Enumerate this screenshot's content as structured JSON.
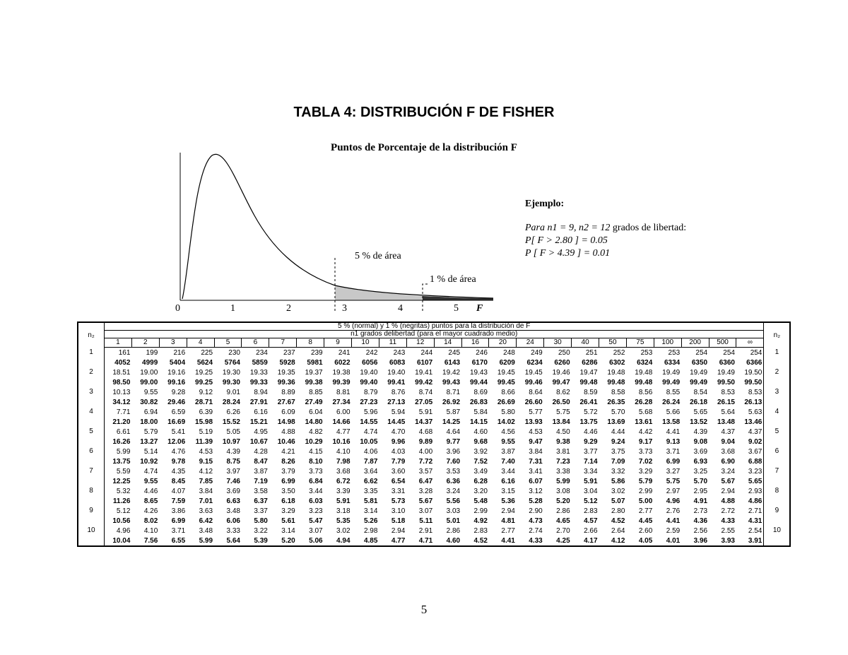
{
  "header": {
    "title": "TABLA 4: DISTRIBUCIÓN F DE FISHER",
    "subtitle": "Puntos de Porcentaje de la distribución F"
  },
  "figure": {
    "axis_labels": [
      "0",
      "1",
      "2",
      "3",
      "4",
      "5"
    ],
    "axis_name": "F",
    "area_5": "5 % de área",
    "area_1": "1 % de área"
  },
  "example": {
    "heading": "Ejemplo:",
    "intro": "Para n1 = 9, n2 = 12",
    "intro_tail": "grados de libertad:",
    "lines": [
      "P[ F > 2.80 ] = 0.05",
      "P [ F > 4.39 ] = 0.01"
    ]
  },
  "table": {
    "n2_label": "n₂",
    "caption": "5 % (normal) y 1 % (negritas) puntos para la distribución de F",
    "subcaption": "n1 grados delibertad (para el mayor cuadrado medio)",
    "columns": [
      "1",
      "2",
      "3",
      "4",
      "5",
      "6",
      "7",
      "8",
      "9",
      "10",
      "11",
      "12",
      "14",
      "16",
      "20",
      "24",
      "30",
      "40",
      "50",
      "75",
      "100",
      "200",
      "500",
      "∞"
    ],
    "rows": [
      {
        "n2": "1",
        "normal": [
          "161",
          "199",
          "216",
          "225",
          "230",
          "234",
          "237",
          "239",
          "241",
          "242",
          "243",
          "244",
          "245",
          "246",
          "248",
          "249",
          "250",
          "251",
          "252",
          "253",
          "253",
          "254",
          "254",
          "254"
        ],
        "bold": [
          "4052",
          "4999",
          "5404",
          "5624",
          "5764",
          "5859",
          "5928",
          "5981",
          "6022",
          "6056",
          "6083",
          "6107",
          "6143",
          "6170",
          "6209",
          "6234",
          "6260",
          "6286",
          "6302",
          "6324",
          "6334",
          "6350",
          "6360",
          "6366"
        ]
      },
      {
        "n2": "2",
        "normal": [
          "18.51",
          "19.00",
          "19.16",
          "19.25",
          "19.30",
          "19.33",
          "19.35",
          "19.37",
          "19.38",
          "19.40",
          "19.40",
          "19.41",
          "19.42",
          "19.43",
          "19.45",
          "19.45",
          "19.46",
          "19.47",
          "19.48",
          "19.48",
          "19.49",
          "19.49",
          "19.49",
          "19.50"
        ],
        "bold": [
          "98.50",
          "99.00",
          "99.16",
          "99.25",
          "99.30",
          "99.33",
          "99.36",
          "99.38",
          "99.39",
          "99.40",
          "99.41",
          "99.42",
          "99.43",
          "99.44",
          "99.45",
          "99.46",
          "99.47",
          "99.48",
          "99.48",
          "99.48",
          "99.49",
          "99.49",
          "99.50",
          "99.50"
        ]
      },
      {
        "n2": "3",
        "normal": [
          "10.13",
          "9.55",
          "9.28",
          "9.12",
          "9.01",
          "8.94",
          "8.89",
          "8.85",
          "8.81",
          "8.79",
          "8.76",
          "8.74",
          "8.71",
          "8.69",
          "8.66",
          "8.64",
          "8.62",
          "8.59",
          "8.58",
          "8.56",
          "8.55",
          "8.54",
          "8.53",
          "8.53"
        ],
        "bold": [
          "34.12",
          "30.82",
          "29.46",
          "28.71",
          "28.24",
          "27.91",
          "27.67",
          "27.49",
          "27.34",
          "27.23",
          "27.13",
          "27.05",
          "26.92",
          "26.83",
          "26.69",
          "26.60",
          "26.50",
          "26.41",
          "26.35",
          "26.28",
          "26.24",
          "26.18",
          "26.15",
          "26.13"
        ]
      },
      {
        "n2": "4",
        "normal": [
          "7.71",
          "6.94",
          "6.59",
          "6.39",
          "6.26",
          "6.16",
          "6.09",
          "6.04",
          "6.00",
          "5.96",
          "5.94",
          "5.91",
          "5.87",
          "5.84",
          "5.80",
          "5.77",
          "5.75",
          "5.72",
          "5.70",
          "5.68",
          "5.66",
          "5.65",
          "5.64",
          "5.63"
        ],
        "bold": [
          "21.20",
          "18.00",
          "16.69",
          "15.98",
          "15.52",
          "15.21",
          "14.98",
          "14.80",
          "14.66",
          "14.55",
          "14.45",
          "14.37",
          "14.25",
          "14.15",
          "14.02",
          "13.93",
          "13.84",
          "13.75",
          "13.69",
          "13.61",
          "13.58",
          "13.52",
          "13.48",
          "13.46"
        ]
      },
      {
        "n2": "5",
        "normal": [
          "6.61",
          "5.79",
          "5.41",
          "5.19",
          "5.05",
          "4.95",
          "4.88",
          "4.82",
          "4.77",
          "4.74",
          "4.70",
          "4.68",
          "4.64",
          "4.60",
          "4.56",
          "4.53",
          "4.50",
          "4.46",
          "4.44",
          "4.42",
          "4.41",
          "4.39",
          "4.37",
          "4.37"
        ],
        "bold": [
          "16.26",
          "13.27",
          "12.06",
          "11.39",
          "10.97",
          "10.67",
          "10.46",
          "10.29",
          "10.16",
          "10.05",
          "9.96",
          "9.89",
          "9.77",
          "9.68",
          "9.55",
          "9.47",
          "9.38",
          "9.29",
          "9.24",
          "9.17",
          "9.13",
          "9.08",
          "9.04",
          "9.02"
        ]
      },
      {
        "n2": "6",
        "normal": [
          "5.99",
          "5.14",
          "4.76",
          "4.53",
          "4.39",
          "4.28",
          "4.21",
          "4.15",
          "4.10",
          "4.06",
          "4.03",
          "4.00",
          "3.96",
          "3.92",
          "3.87",
          "3.84",
          "3.81",
          "3.77",
          "3.75",
          "3.73",
          "3.71",
          "3.69",
          "3.68",
          "3.67"
        ],
        "bold": [
          "13.75",
          "10.92",
          "9.78",
          "9.15",
          "8.75",
          "8.47",
          "8.26",
          "8.10",
          "7.98",
          "7.87",
          "7.79",
          "7.72",
          "7.60",
          "7.52",
          "7.40",
          "7.31",
          "7.23",
          "7.14",
          "7.09",
          "7.02",
          "6.99",
          "6.93",
          "6.90",
          "6.88"
        ]
      },
      {
        "n2": "7",
        "normal": [
          "5.59",
          "4.74",
          "4.35",
          "4.12",
          "3.97",
          "3.87",
          "3.79",
          "3.73",
          "3.68",
          "3.64",
          "3.60",
          "3.57",
          "3.53",
          "3.49",
          "3.44",
          "3.41",
          "3.38",
          "3.34",
          "3.32",
          "3.29",
          "3.27",
          "3.25",
          "3.24",
          "3.23"
        ],
        "bold": [
          "12.25",
          "9.55",
          "8.45",
          "7.85",
          "7.46",
          "7.19",
          "6.99",
          "6.84",
          "6.72",
          "6.62",
          "6.54",
          "6.47",
          "6.36",
          "6.28",
          "6.16",
          "6.07",
          "5.99",
          "5.91",
          "5.86",
          "5.79",
          "5.75",
          "5.70",
          "5.67",
          "5.65"
        ]
      },
      {
        "n2": "8",
        "normal": [
          "5.32",
          "4.46",
          "4.07",
          "3.84",
          "3.69",
          "3.58",
          "3.50",
          "3.44",
          "3.39",
          "3.35",
          "3.31",
          "3.28",
          "3.24",
          "3.20",
          "3.15",
          "3.12",
          "3.08",
          "3.04",
          "3.02",
          "2.99",
          "2.97",
          "2.95",
          "2.94",
          "2.93"
        ],
        "bold": [
          "11.26",
          "8.65",
          "7.59",
          "7.01",
          "6.63",
          "6.37",
          "6.18",
          "6.03",
          "5.91",
          "5.81",
          "5.73",
          "5.67",
          "5.56",
          "5.48",
          "5.36",
          "5.28",
          "5.20",
          "5.12",
          "5.07",
          "5.00",
          "4.96",
          "4.91",
          "4.88",
          "4.86"
        ]
      },
      {
        "n2": "9",
        "normal": [
          "5.12",
          "4.26",
          "3.86",
          "3.63",
          "3.48",
          "3.37",
          "3.29",
          "3.23",
          "3.18",
          "3.14",
          "3.10",
          "3.07",
          "3.03",
          "2.99",
          "2.94",
          "2.90",
          "2.86",
          "2.83",
          "2.80",
          "2.77",
          "2.76",
          "2.73",
          "2.72",
          "2.71"
        ],
        "bold": [
          "10.56",
          "8.02",
          "6.99",
          "6.42",
          "6.06",
          "5.80",
          "5.61",
          "5.47",
          "5.35",
          "5.26",
          "5.18",
          "5.11",
          "5.01",
          "4.92",
          "4.81",
          "4.73",
          "4.65",
          "4.57",
          "4.52",
          "4.45",
          "4.41",
          "4.36",
          "4.33",
          "4.31"
        ]
      },
      {
        "n2": "10",
        "normal": [
          "4.96",
          "4.10",
          "3.71",
          "3.48",
          "3.33",
          "3.22",
          "3.14",
          "3.07",
          "3.02",
          "2.98",
          "2.94",
          "2.91",
          "2.86",
          "2.83",
          "2.77",
          "2.74",
          "2.70",
          "2.66",
          "2.64",
          "2.60",
          "2.59",
          "2.56",
          "2.55",
          "2.54"
        ],
        "bold": [
          "10.04",
          "7.56",
          "6.55",
          "5.99",
          "5.64",
          "5.39",
          "5.20",
          "5.06",
          "4.94",
          "4.85",
          "4.77",
          "4.71",
          "4.60",
          "4.52",
          "4.41",
          "4.33",
          "4.25",
          "4.17",
          "4.12",
          "4.05",
          "4.01",
          "3.96",
          "3.93",
          "3.91"
        ]
      }
    ]
  },
  "page_number": "5"
}
